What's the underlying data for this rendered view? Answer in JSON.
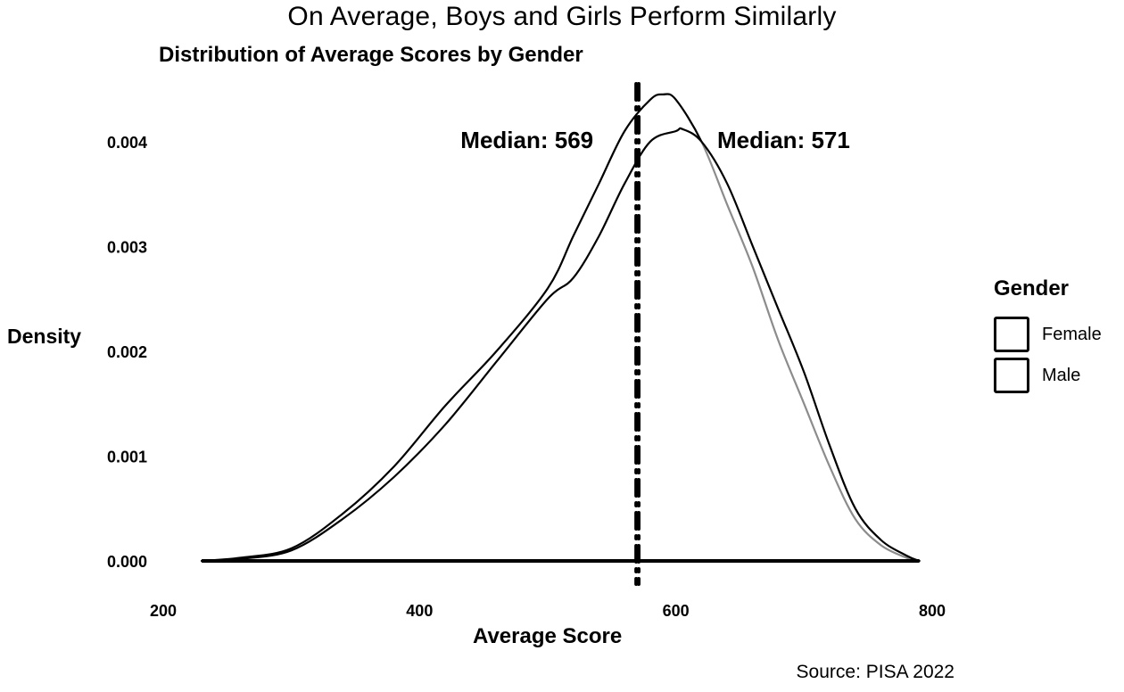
{
  "chart_data": {
    "type": "area",
    "title": "On Average, Boys and Girls Perform Similarly",
    "subtitle": "Distribution of Average Scores by Gender",
    "caption": "Source: PISA 2022",
    "xlabel": "Average Score",
    "ylabel": "Density",
    "xlim": [
      200,
      800
    ],
    "ylim": [
      0,
      0.0045
    ],
    "x_ticks": [
      200,
      400,
      600,
      800
    ],
    "y_ticks": [
      0,
      0.001,
      0.002,
      0.003,
      0.004
    ],
    "y_tick_labels": [
      "0.000",
      "0.001",
      "0.002",
      "0.003",
      "0.004"
    ],
    "x_tick_labels": [
      "200",
      "400",
      "600",
      "800"
    ],
    "grid": false,
    "legend": {
      "title": "Gender",
      "position": "right"
    },
    "series": [
      {
        "name": "Female",
        "fill": "#ffffff",
        "x": [
          230,
          260,
          300,
          340,
          380,
          420,
          460,
          500,
          520,
          540,
          560,
          580,
          590,
          600,
          620,
          640,
          660,
          680,
          700,
          720,
          740,
          760,
          780,
          790
        ],
        "y": [
          0.0,
          3e-05,
          0.00012,
          0.00045,
          0.0009,
          0.00148,
          0.002,
          0.0026,
          0.0031,
          0.0036,
          0.0041,
          0.0044,
          0.00445,
          0.0044,
          0.004,
          0.0034,
          0.0028,
          0.0021,
          0.0015,
          0.0009,
          0.0004,
          0.00015,
          3e-05,
          0.0
        ]
      },
      {
        "name": "Male",
        "fill": "#ffffff",
        "x": [
          230,
          260,
          300,
          340,
          380,
          420,
          460,
          500,
          520,
          540,
          560,
          580,
          600,
          605,
          620,
          640,
          660,
          680,
          700,
          720,
          740,
          760,
          780,
          790
        ],
        "y": [
          0.0,
          2e-05,
          0.0001,
          0.0004,
          0.0008,
          0.0013,
          0.0019,
          0.0025,
          0.0027,
          0.0031,
          0.0036,
          0.004,
          0.0041,
          0.00412,
          0.004,
          0.0036,
          0.003,
          0.0024,
          0.0018,
          0.0011,
          0.0005,
          0.0002,
          5e-05,
          0.0
        ]
      }
    ],
    "medians": [
      {
        "series": "Female",
        "value": 569,
        "label": "Median: 569"
      },
      {
        "series": "Male",
        "value": 571,
        "label": "Median: 571"
      }
    ]
  }
}
